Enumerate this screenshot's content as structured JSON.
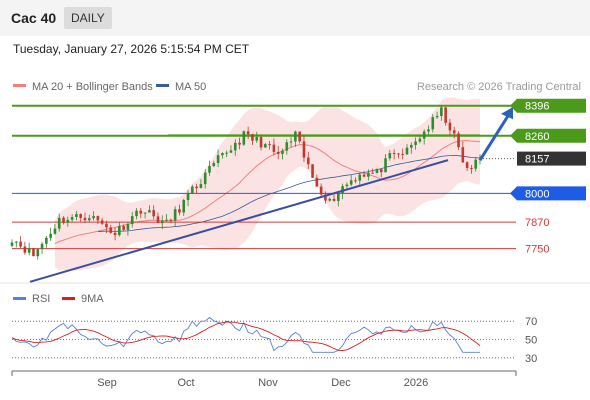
{
  "header": {
    "symbol": "Cac 40",
    "period": "DAILY"
  },
  "timestamp": "Tuesday, January 27, 2026 5:15:54 PM CET",
  "colors": {
    "green_level": "#4c9a1a",
    "blue_level": "#1e5ce6",
    "red_level": "#d43a3a",
    "trendline": "#3a4f9e",
    "bollinger_fill": "#fbd9d9",
    "ma20": "#f08080",
    "ma50": "#3a5a9e",
    "candle_up": "#2e8b2e",
    "candle_down": "#c0392b",
    "rsi": "#5b7fd6",
    "rsi_ma": "#d62020",
    "price_badge": "#333333"
  },
  "chart_data": [
    {
      "type": "candlestick",
      "title": "Cac 40",
      "legend": [
        {
          "name": "MA 20 + Bollinger Bands",
          "color": "#f08080"
        },
        {
          "name": "MA 50",
          "color": "#3a5a9e"
        }
      ],
      "watermark": "Research © 2026 Trading Central",
      "x_tick_labels": [
        "Sep",
        "Oct",
        "Nov",
        "Dec",
        "2026"
      ],
      "y_range": [
        7590,
        8440
      ],
      "levels": [
        {
          "value": 8396,
          "label": "8396",
          "kind": "resistance",
          "color": "#4c9a1a"
        },
        {
          "value": 8260,
          "label": "8260",
          "kind": "resistance",
          "color": "#4c9a1a"
        },
        {
          "value": 8157,
          "label": "8157",
          "kind": "last-price",
          "color": "#333333"
        },
        {
          "value": 8000,
          "label": "8000",
          "kind": "pivot",
          "color": "#1e5ce6"
        },
        {
          "value": 7870,
          "label": "7870",
          "kind": "support",
          "color": "#d43a3a"
        },
        {
          "value": 7750,
          "label": "7750",
          "kind": "support",
          "color": "#d43a3a"
        }
      ]
    },
    {
      "type": "line",
      "title": "RSI",
      "legend": [
        {
          "name": "RSI",
          "color": "#5b7fd6"
        },
        {
          "name": "9MA",
          "color": "#d62020"
        }
      ],
      "y_range": [
        20,
        80
      ],
      "y_tick_labels": [
        "70",
        "50",
        "30"
      ],
      "y_ticks": [
        70,
        50,
        30
      ]
    }
  ]
}
